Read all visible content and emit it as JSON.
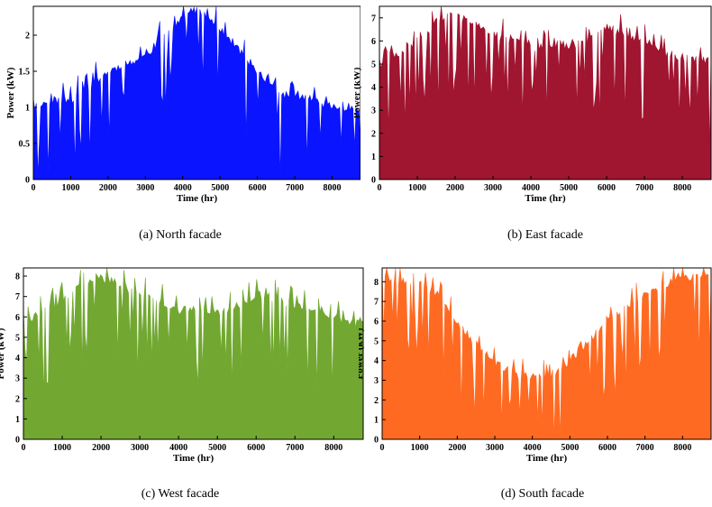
{
  "chart_data": [
    {
      "type": "area",
      "caption": "(a) North facade",
      "xlabel": "Time (hr)",
      "ylabel": "Power (kW)",
      "xlim": [
        0,
        8760
      ],
      "ylim": [
        0,
        2.4
      ],
      "x_ticks": [
        0,
        1000,
        2000,
        3000,
        4000,
        5000,
        6000,
        7000,
        8000
      ],
      "y_ticks": [
        0,
        0.5,
        1,
        1.5,
        2
      ],
      "color": "#0a14ff",
      "x": [
        0,
        500,
        1000,
        1500,
        2000,
        2500,
        3000,
        3500,
        4000,
        4300,
        4500,
        5000,
        5500,
        6000,
        6500,
        7000,
        7500,
        8000,
        8500,
        8760
      ],
      "values": [
        1.0,
        1.1,
        1.1,
        1.3,
        1.5,
        1.6,
        1.7,
        2.0,
        2.25,
        2.35,
        2.3,
        2.1,
        1.8,
        1.5,
        1.2,
        1.15,
        1.1,
        1.0,
        1.0,
        1.0
      ]
    },
    {
      "type": "area",
      "caption": "(b) East facade",
      "xlabel": "Time (hr)",
      "ylabel": "Power (kW)",
      "xlim": [
        0,
        8760
      ],
      "ylim": [
        0,
        7.5
      ],
      "x_ticks": [
        0,
        1000,
        2000,
        3000,
        4000,
        5000,
        6000,
        7000,
        8000
      ],
      "y_ticks": [
        0,
        1,
        2,
        3,
        4,
        5,
        6,
        7
      ],
      "color": "#a01530",
      "x": [
        0,
        500,
        1000,
        1500,
        2000,
        2500,
        3000,
        3500,
        4000,
        4500,
        5000,
        5500,
        6000,
        6500,
        7000,
        7500,
        8000,
        8500,
        8760
      ],
      "values": [
        4.8,
        5.4,
        6.0,
        6.8,
        7.2,
        6.7,
        6.3,
        6.0,
        5.7,
        5.9,
        5.8,
        6.0,
        6.6,
        6.3,
        6.0,
        5.5,
        5.3,
        5.2,
        5.1
      ]
    },
    {
      "type": "area",
      "caption": "(c) West facade",
      "xlabel": "Time (hr)",
      "ylabel": "Power (kW)",
      "xlim": [
        0,
        8760
      ],
      "ylim": [
        0,
        8.4
      ],
      "x_ticks": [
        0,
        1000,
        2000,
        3000,
        4000,
        5000,
        6000,
        7000,
        8000
      ],
      "y_ticks": [
        0,
        1,
        2,
        3,
        4,
        5,
        6,
        7,
        8
      ],
      "color": "#72a832",
      "x": [
        0,
        500,
        1000,
        1500,
        2000,
        2500,
        3000,
        3500,
        4000,
        4500,
        5000,
        5500,
        6000,
        6500,
        7000,
        7500,
        8000,
        8500,
        8760
      ],
      "values": [
        5.8,
        6.2,
        6.8,
        7.5,
        7.9,
        7.6,
        7.1,
        6.8,
        6.3,
        6.4,
        6.3,
        6.5,
        7.1,
        6.9,
        6.6,
        6.2,
        6.0,
        5.7,
        5.6
      ]
    },
    {
      "type": "area",
      "caption": "(d) South facade",
      "xlabel": "Time (hr)",
      "ylabel": "Power (kW)",
      "xlim": [
        0,
        8760
      ],
      "ylim": [
        0,
        8.7
      ],
      "x_ticks": [
        0,
        1000,
        2000,
        3000,
        4000,
        5000,
        6000,
        7000,
        8000
      ],
      "y_ticks": [
        0,
        1,
        2,
        3,
        4,
        5,
        6,
        7,
        8
      ],
      "color": "#ff6a22",
      "x": [
        0,
        300,
        1000,
        1500,
        2000,
        2500,
        3000,
        3500,
        4000,
        4500,
        5000,
        5500,
        6000,
        6500,
        7000,
        7500,
        8000,
        8500,
        8760
      ],
      "values": [
        8.5,
        8.1,
        7.9,
        7.3,
        6.0,
        4.8,
        3.9,
        3.3,
        3.15,
        3.3,
        4.0,
        5.0,
        6.0,
        6.8,
        7.3,
        7.8,
        8.2,
        8.3,
        8.2
      ]
    }
  ]
}
